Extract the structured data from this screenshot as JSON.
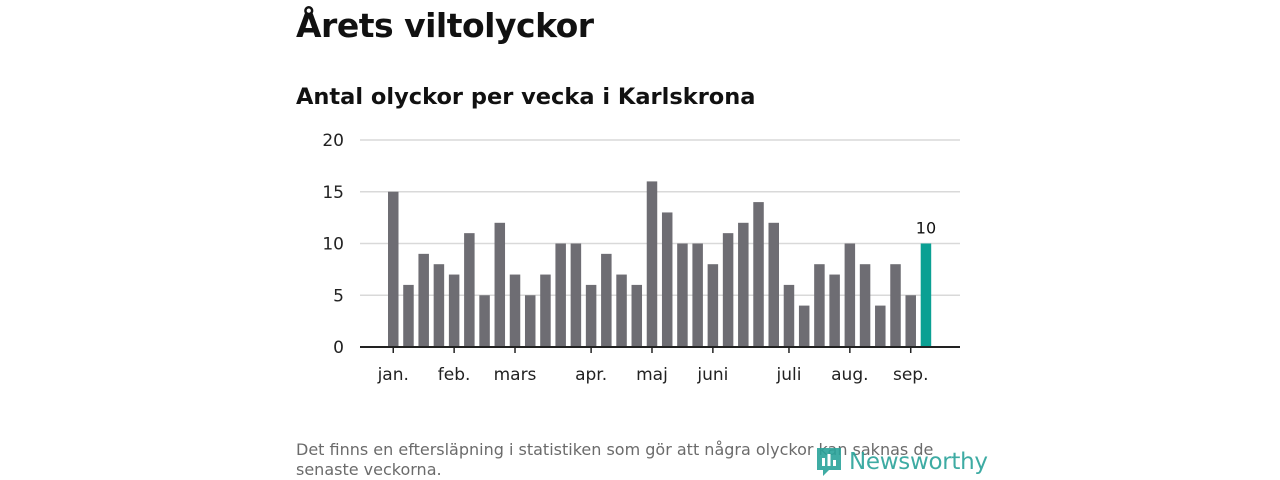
{
  "header": {
    "title": "Årets viltolyckor",
    "subtitle": "Antal olyckor per vecka i Karlskrona"
  },
  "footer": {
    "note": "Det finns en eftersläpning i statistiken som gör att några olyckor kan saknas de senaste veckorna.",
    "brand": "Newsworthy",
    "brand_icon": "newsworthy-logo-icon"
  },
  "colors": {
    "bar": "#6e6d73",
    "highlight": "#0aa093",
    "grid": "#d9d9d9",
    "axis": "#222222",
    "brand": "#2aa39a"
  },
  "chart_data": {
    "type": "bar",
    "title": "Antal olyckor per vecka i Karlskrona",
    "xlabel": "",
    "ylabel": "",
    "ylim": [
      0,
      20
    ],
    "yticks": [
      0,
      5,
      10,
      15,
      20
    ],
    "weeks": [
      1,
      2,
      3,
      4,
      5,
      6,
      7,
      8,
      9,
      10,
      11,
      12,
      13,
      14,
      15,
      16,
      17,
      18,
      19,
      20,
      21,
      22,
      23,
      24,
      25,
      26,
      27,
      28,
      29,
      30,
      31,
      32,
      33,
      34,
      35,
      36
    ],
    "values": [
      15,
      6,
      9,
      8,
      7,
      11,
      5,
      12,
      7,
      5,
      7,
      10,
      10,
      6,
      9,
      7,
      6,
      16,
      13,
      10,
      10,
      8,
      11,
      12,
      14,
      12,
      6,
      4,
      8,
      7,
      10,
      8,
      4,
      8,
      5,
      10
    ],
    "highlight_index": 35,
    "highlight_label": "10",
    "month_ticks": [
      {
        "label": "jan.",
        "week": 1
      },
      {
        "label": "feb.",
        "week": 5
      },
      {
        "label": "mars",
        "week": 9
      },
      {
        "label": "apr.",
        "week": 14
      },
      {
        "label": "maj",
        "week": 18
      },
      {
        "label": "juni",
        "week": 22
      },
      {
        "label": "juli",
        "week": 27
      },
      {
        "label": "aug.",
        "week": 31
      },
      {
        "label": "sep.",
        "week": 35
      }
    ],
    "grid": true,
    "legend": "none"
  }
}
